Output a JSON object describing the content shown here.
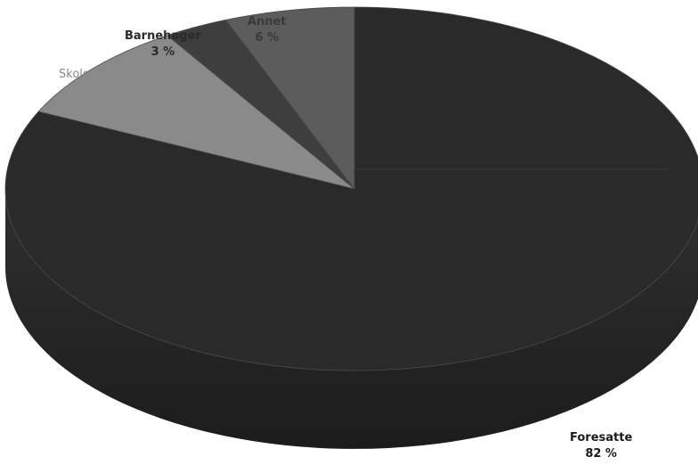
{
  "chart_data": {
    "type": "pie",
    "title": "",
    "three_d": true,
    "legend": "none",
    "slices": [
      {
        "label": "Foresatte",
        "value": 82,
        "value_label": "82 %",
        "color": "#2a2a2a"
      },
      {
        "label": "Skoler",
        "value": 9,
        "value_label": "9 %",
        "color": "#8a8a8a"
      },
      {
        "label": "Barnehager",
        "value": 3,
        "value_label": "3 %",
        "color": "#3e3e3e"
      },
      {
        "label": "Annet",
        "value": 6,
        "value_label": "6 %",
        "color": "#5c5c5c"
      }
    ]
  }
}
